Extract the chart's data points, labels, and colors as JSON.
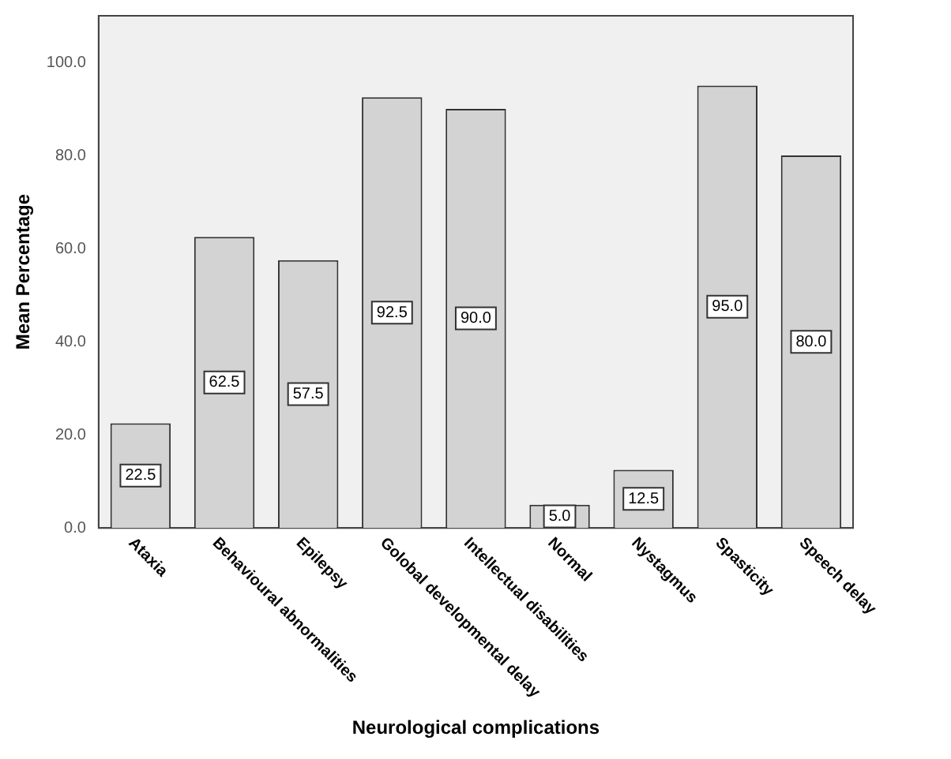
{
  "chart_data": {
    "type": "bar",
    "xlabel": "Neurological complications",
    "ylabel": "Mean Percentage",
    "categories": [
      "Ataxia",
      "Behavioural abnormalities",
      "Epilepsy",
      "Golobal developmental delay",
      "Intellectual disabilities",
      "Normal",
      "Nystagmus",
      "Spasticity",
      "Speech delay"
    ],
    "values": [
      22.5,
      62.5,
      57.5,
      92.5,
      90.0,
      5.0,
      12.5,
      95.0,
      80.0
    ],
    "value_labels": [
      "22.5",
      "62.5",
      "57.5",
      "92.5",
      "90.0",
      "5.0",
      "12.5",
      "95.0",
      "80.0"
    ],
    "color": "#d3d3d3",
    "ylim": [
      0,
      110
    ],
    "yticks": [
      {
        "value": 0,
        "label": "0.0"
      },
      {
        "value": 20,
        "label": "20.0"
      },
      {
        "value": 40,
        "label": "40.0"
      },
      {
        "value": 60,
        "label": "60.0"
      },
      {
        "value": 80,
        "label": "80.0"
      },
      {
        "value": 100,
        "label": "100.0"
      }
    ],
    "grid": false,
    "legend": false
  }
}
